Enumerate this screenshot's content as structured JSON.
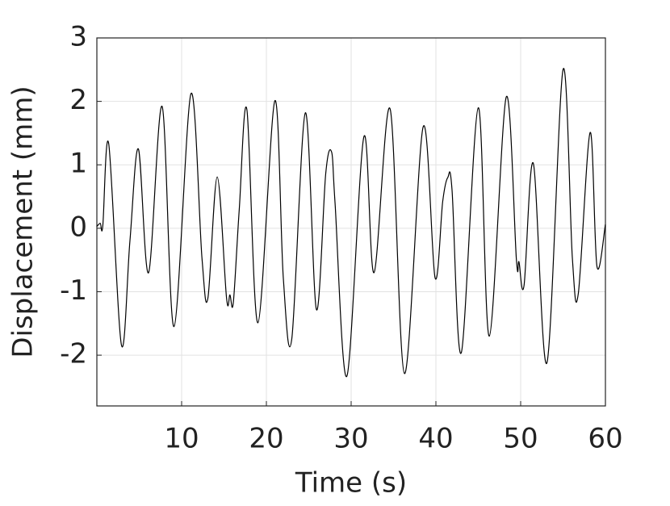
{
  "chart_data": {
    "type": "line",
    "x_label": "Time (s)",
    "y_label": "Displacement (mm)",
    "x": [
      0,
      0.4,
      0.7,
      1.4,
      2.9,
      3.9,
      4.9,
      6.1,
      7.7,
      9.1,
      11.1,
      12.4,
      13.1,
      14.2,
      15.3,
      15.7,
      16.1,
      16.8,
      17.7,
      19.0,
      21.0,
      22.0,
      23.0,
      24.6,
      25.9,
      27.0,
      27.7,
      28.1,
      29.5,
      31.5,
      32.7,
      34.6,
      36.3,
      38.5,
      39.9,
      40.8,
      41.4,
      41.9,
      43.0,
      45.0,
      46.3,
      48.3,
      49.5,
      49.8,
      50.4,
      51.5,
      53.1,
      55.0,
      56.1,
      56.8,
      58.2,
      59.0,
      60
    ],
    "series": [
      {
        "color": "#000000",
        "values": [
          0.03,
          0.08,
          0.04,
          1.33,
          -1.84,
          -0.2,
          1.25,
          -0.7,
          1.92,
          -1.55,
          2.12,
          -0.47,
          -1.1,
          0.81,
          -1.1,
          -1.05,
          -1.17,
          0.3,
          1.87,
          -1.49,
          2.01,
          -0.79,
          -1.74,
          1.82,
          -1.28,
          0.86,
          1.2,
          0.4,
          -2.33,
          1.44,
          -0.7,
          1.88,
          -2.29,
          1.6,
          -0.78,
          0.42,
          0.8,
          0.61,
          -1.96,
          1.9,
          -1.7,
          2.07,
          -0.5,
          -0.53,
          -0.9,
          1.02,
          -2.12,
          2.5,
          -0.47,
          -1.03,
          1.51,
          -0.6,
          0.06
        ]
      }
    ],
    "xlim": [
      0,
      60
    ],
    "xticks": [
      10,
      20,
      30,
      40,
      50,
      60
    ],
    "ylim": [
      -2.8,
      3
    ],
    "yticks": [
      -2,
      -1,
      0,
      1,
      2,
      3
    ],
    "grid": true
  }
}
